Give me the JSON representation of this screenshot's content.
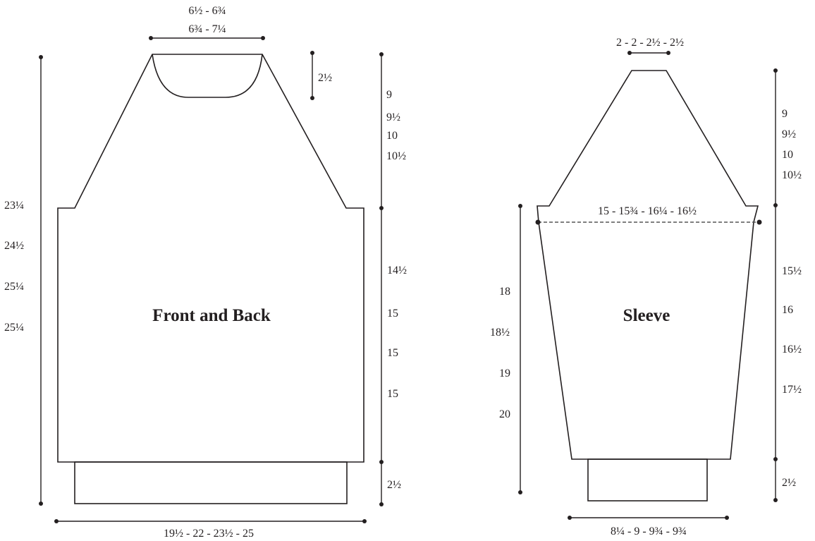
{
  "front_back": {
    "title": "Front and Back",
    "neck_width_lines": [
      "6½ - 6¾",
      "6¾ - 7¼"
    ],
    "neck_depth": "2½",
    "raglan_depth_lines": [
      "9",
      "9½",
      "10",
      "10½"
    ],
    "total_length_lines": [
      "23¼",
      "24½",
      "25¼",
      "25¼"
    ],
    "body_length_lines": [
      "14½",
      "15",
      "15",
      "15"
    ],
    "ribbing_depth": "2½",
    "bottom_width": "19½ - 22 - 23½ - 25"
  },
  "sleeve": {
    "title": "Sleeve",
    "top_width": "2 - 2 - 2½ - 2½",
    "upper_arm_width": "15 - 15¾ - 16¼ - 16½",
    "cap_depth_lines": [
      "9",
      "9½",
      "10",
      "10½"
    ],
    "length_left_lines": [
      "18",
      "18½",
      "19",
      "20"
    ],
    "length_right_lines": [
      "15½",
      "16",
      "16½",
      "17½"
    ],
    "cuff_depth": "2½",
    "cuff_width": "8¼ - 9 - 9¾ - 9¾"
  }
}
